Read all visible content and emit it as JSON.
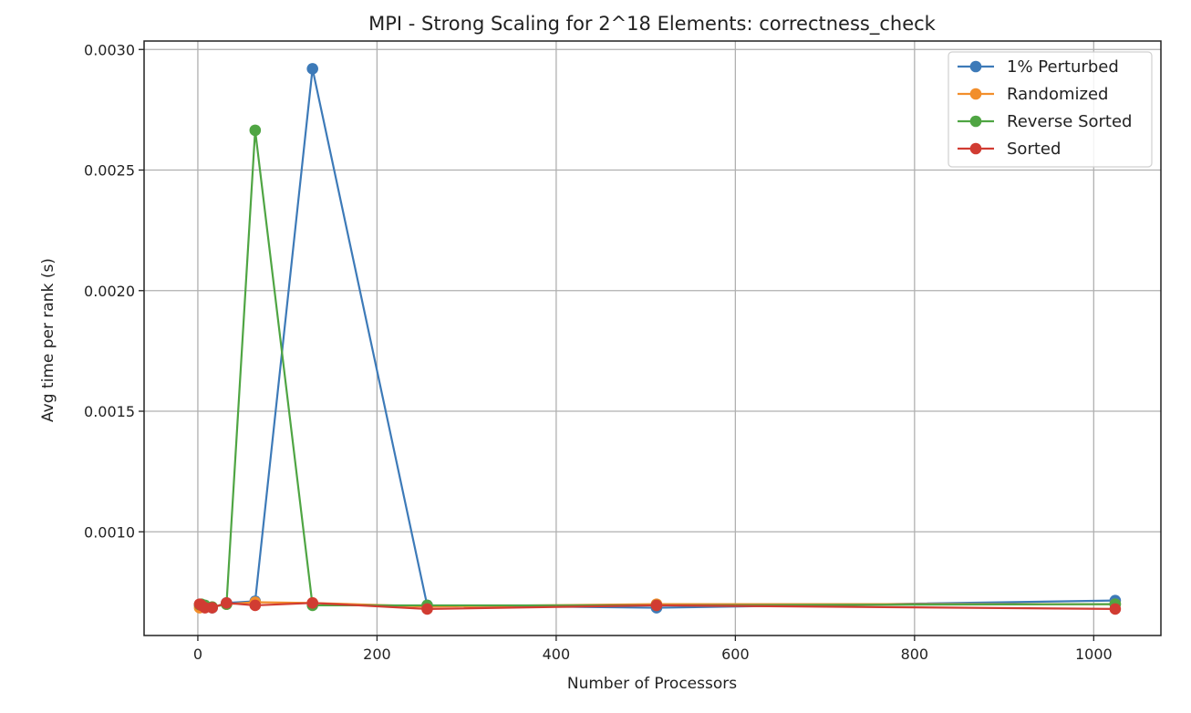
{
  "chart_data": {
    "type": "line",
    "title": "MPI - Strong Scaling for 2^18 Elements: correctness_check",
    "xlabel": "Number of Processors",
    "ylabel": "Avg time per rank (s)",
    "xlim": [
      -60,
      1075
    ],
    "ylim": [
      0.00057,
      0.003035
    ],
    "xticks": [
      0,
      200,
      400,
      600,
      800,
      1000
    ],
    "xtick_labels": [
      "0",
      "200",
      "400",
      "600",
      "800",
      "1000"
    ],
    "yticks": [
      0.001,
      0.0015,
      0.002,
      0.0025,
      0.003
    ],
    "ytick_labels": [
      "0.0010",
      "0.0015",
      "0.0020",
      "0.0025",
      "0.0030"
    ],
    "grid": true,
    "legend_position": "top-right",
    "x": [
      2,
      4,
      8,
      16,
      32,
      64,
      128,
      256,
      512,
      1024
    ],
    "series": [
      {
        "name": "1% Perturbed",
        "color": "#3d7ab8",
        "values": [
          0.000695,
          0.00069,
          0.000688,
          0.000685,
          0.000705,
          0.000712,
          0.00292,
          0.000695,
          0.000685,
          0.000715
        ]
      },
      {
        "name": "Randomized",
        "color": "#f28e2b",
        "values": [
          0.000685,
          0.00069,
          0.00069,
          0.000688,
          0.0007,
          0.000708,
          0.000705,
          0.00069,
          0.0007,
          0.0007
        ]
      },
      {
        "name": "Reverse Sorted",
        "color": "#4fa543",
        "values": [
          0.000698,
          0.0007,
          0.000695,
          0.000688,
          0.0007,
          0.002665,
          0.000695,
          0.000695,
          0.000695,
          0.0007
        ]
      },
      {
        "name": "Sorted",
        "color": "#d13c32",
        "values": [
          0.0007,
          0.000695,
          0.000685,
          0.000685,
          0.000705,
          0.000695,
          0.000705,
          0.00068,
          0.000695,
          0.00068
        ]
      }
    ]
  }
}
